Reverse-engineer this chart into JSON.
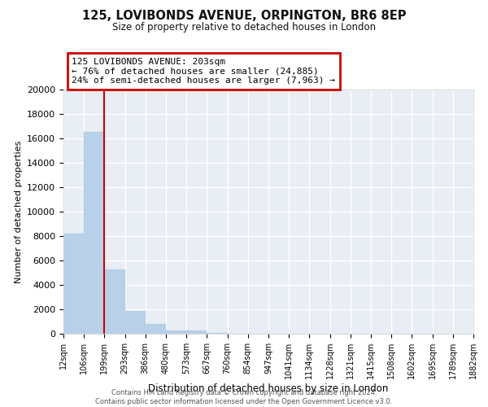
{
  "title": "125, LOVIBONDS AVENUE, ORPINGTON, BR6 8EP",
  "subtitle": "Size of property relative to detached houses in London",
  "xlabel": "Distribution of detached houses by size in London",
  "ylabel": "Number of detached properties",
  "bar_values": [
    8200,
    16550,
    5300,
    1850,
    800,
    300,
    300,
    100,
    0,
    0,
    0,
    0,
    0,
    0,
    0,
    0,
    0,
    0,
    0,
    0
  ],
  "bin_labels": [
    "12sqm",
    "106sqm",
    "199sqm",
    "293sqm",
    "386sqm",
    "480sqm",
    "573sqm",
    "667sqm",
    "760sqm",
    "854sqm",
    "947sqm",
    "1041sqm",
    "1134sqm",
    "1228sqm",
    "1321sqm",
    "1415sqm",
    "1508sqm",
    "1602sqm",
    "1695sqm",
    "1789sqm",
    "1882sqm"
  ],
  "bar_color": "#b8d0e8",
  "bar_edgecolor": "#b8d0e8",
  "property_line_x": 2,
  "property_line_color": "#cc0000",
  "annotation_line1": "125 LOVIBONDS AVENUE: 203sqm",
  "annotation_line2": "← 76% of detached houses are smaller (24,885)",
  "annotation_line3": "24% of semi-detached houses are larger (7,963) →",
  "annotation_box_edgecolor": "#cc0000",
  "ylim": [
    0,
    20000
  ],
  "yticks": [
    0,
    2000,
    4000,
    6000,
    8000,
    10000,
    12000,
    14000,
    16000,
    18000,
    20000
  ],
  "figure_bg": "#ffffff",
  "plot_bg": "#e8eef4",
  "grid_color": "#ffffff",
  "footer_line1": "Contains HM Land Registry data © Crown copyright and database right 2024.",
  "footer_line2": "Contains public sector information licensed under the Open Government Licence v3.0."
}
